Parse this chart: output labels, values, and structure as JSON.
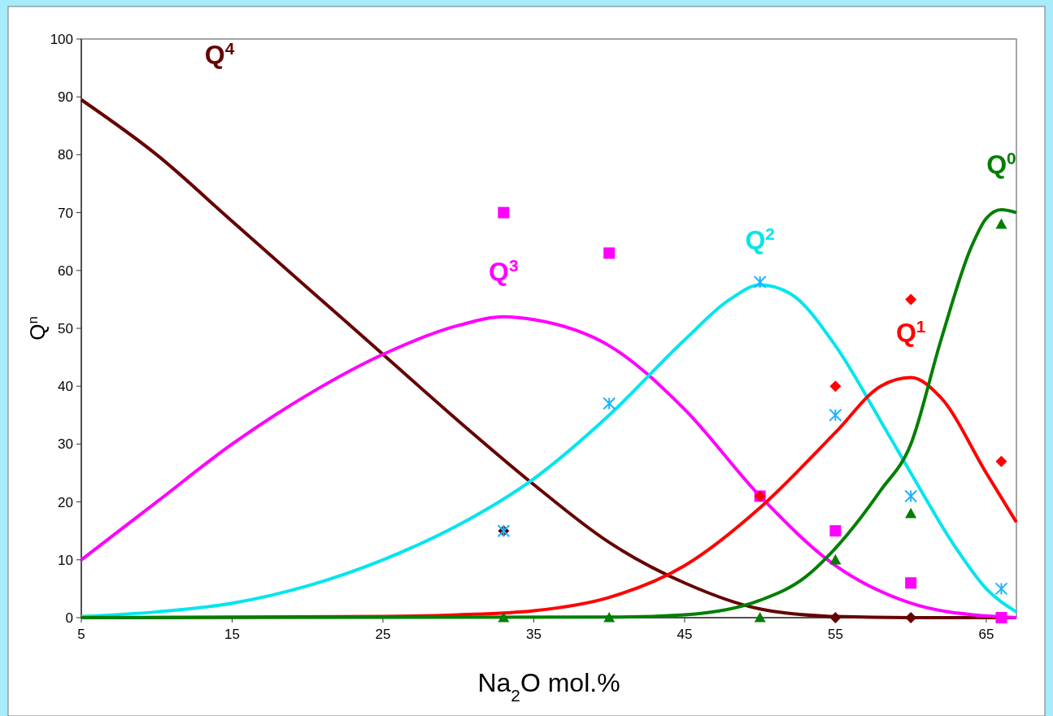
{
  "chart_data": {
    "type": "line",
    "xlabel": "Na$_{2}$O mol.%",
    "ylabel": "Q$^{n}$",
    "xlim": [
      5,
      67
    ],
    "ylim": [
      0,
      100
    ],
    "xticks": [
      5,
      15,
      25,
      35,
      45,
      55,
      65
    ],
    "yticks": [
      0,
      10,
      20,
      30,
      40,
      50,
      60,
      70,
      80,
      90,
      100
    ],
    "grid": false,
    "legend": false,
    "series": [
      {
        "name": "Q$^{4}$",
        "color": "#660000",
        "x": [
          5,
          10,
          15,
          20,
          25,
          30,
          35,
          40,
          45,
          50,
          55,
          60,
          67
        ],
        "values": [
          89.5,
          80,
          68.5,
          57,
          45.5,
          34,
          23,
          13,
          6,
          1.5,
          0.2,
          0,
          0
        ]
      },
      {
        "name": "Q$^{3}$",
        "color": "#ff00ff",
        "x": [
          5,
          10,
          15,
          20,
          25,
          30,
          33,
          35,
          40,
          45,
          50,
          55,
          60,
          65,
          67
        ],
        "values": [
          10,
          20,
          30,
          38.5,
          45.5,
          50.5,
          52,
          51.5,
          47,
          36,
          21,
          9,
          2.5,
          0.3,
          0
        ]
      },
      {
        "name": "Q$^{2}$",
        "color": "#00e5ee",
        "x": [
          5,
          10,
          15,
          20,
          25,
          30,
          35,
          40,
          45,
          48,
          50,
          52,
          55,
          58,
          60,
          63,
          65,
          67
        ],
        "values": [
          0.2,
          1,
          2.5,
          5.5,
          10,
          16,
          24,
          35,
          48,
          55,
          57.5,
          56,
          47,
          34,
          25,
          12,
          5,
          1
        ]
      },
      {
        "name": "Q$^{1}$",
        "color": "#ff0000",
        "x": [
          5,
          25,
          30,
          35,
          40,
          45,
          50,
          55,
          58,
          60,
          62,
          65,
          67
        ],
        "values": [
          0,
          0.2,
          0.5,
          1.2,
          3.5,
          9,
          19,
          32,
          40,
          41.5,
          38,
          25,
          16.5
        ]
      },
      {
        "name": "Q$^{0}$",
        "color": "#007f00",
        "x": [
          5,
          40,
          45,
          50,
          53,
          55,
          58,
          60,
          62,
          64,
          65,
          66,
          67
        ],
        "values": [
          0,
          0.1,
          0.5,
          3,
          7,
          12,
          22,
          30,
          48,
          64,
          69,
          70.5,
          70
        ]
      },
      {
        "type": "scatter",
        "marker": "diamond",
        "color": "#660000",
        "x": [
          33,
          55,
          60
        ],
        "values": [
          15,
          0,
          0
        ]
      },
      {
        "type": "scatter",
        "marker": "square",
        "color": "#ff00ff",
        "x": [
          33,
          40,
          50,
          55,
          60,
          66
        ],
        "values": [
          70,
          63,
          21,
          15,
          6,
          0
        ]
      },
      {
        "type": "scatter",
        "marker": "cross",
        "color": "#1eb4ff",
        "x": [
          33,
          40,
          50,
          55,
          60,
          66
        ],
        "values": [
          15,
          37,
          58,
          35,
          21,
          5
        ]
      },
      {
        "type": "scatter",
        "marker": "diamond",
        "color": "#ff0000",
        "x": [
          50,
          55,
          60,
          66
        ],
        "values": [
          21,
          40,
          55,
          27
        ]
      },
      {
        "type": "scatter",
        "marker": "triangle",
        "color": "#007f00",
        "x": [
          33,
          40,
          50,
          55,
          60,
          66
        ],
        "values": [
          0,
          0,
          0,
          10,
          18,
          68
        ]
      }
    ]
  }
}
